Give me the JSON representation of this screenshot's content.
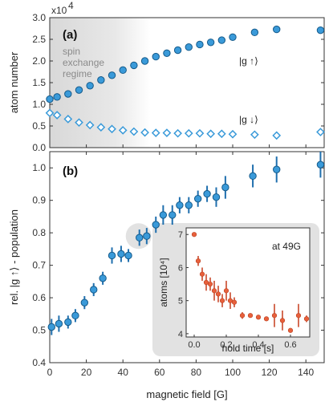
{
  "chart_data": [
    {
      "panel_label": "(a)",
      "type": "scatter",
      "ylabel": "atom number",
      "y_multiplier": "x10^4",
      "xlim": [
        0,
        150
      ],
      "ylim": [
        0,
        3.0
      ],
      "yticks": [
        "0.0",
        "0.5",
        "1.0",
        "1.5",
        "2.0",
        "2.5",
        "3.0"
      ],
      "shaded_region": {
        "label": [
          "spin",
          "exchange",
          "regime"
        ],
        "x": [
          0,
          55
        ]
      },
      "series": [
        {
          "name": "|g ↑⟩",
          "marker": "circle",
          "color": "#3a9ad9",
          "x": [
            0,
            4,
            10,
            16,
            22,
            28,
            34,
            40,
            46,
            52,
            58,
            64,
            70,
            76,
            82,
            88,
            94,
            100,
            112,
            124,
            148
          ],
          "y": [
            1.12,
            1.17,
            1.24,
            1.33,
            1.43,
            1.56,
            1.67,
            1.79,
            1.9,
            2.0,
            2.1,
            2.18,
            2.25,
            2.32,
            2.38,
            2.43,
            2.48,
            2.55,
            2.66,
            2.73,
            2.71
          ]
        },
        {
          "name": "|g ↓⟩",
          "marker": "diamond",
          "color": "#3a9ad9",
          "x": [
            0,
            4,
            10,
            16,
            22,
            28,
            34,
            40,
            46,
            52,
            58,
            64,
            70,
            76,
            82,
            88,
            94,
            100,
            112,
            124,
            148
          ],
          "y": [
            0.8,
            0.75,
            0.66,
            0.58,
            0.52,
            0.47,
            0.43,
            0.4,
            0.37,
            0.35,
            0.34,
            0.34,
            0.33,
            0.33,
            0.33,
            0.32,
            0.32,
            0.31,
            0.3,
            0.28,
            0.36
          ]
        }
      ]
    },
    {
      "panel_label": "(b)",
      "type": "scatter",
      "xlabel": "magnetic field [G]",
      "ylabel": "rel. |g ↑⟩ - population",
      "xlim": [
        0,
        150
      ],
      "ylim": [
        0.4,
        1.05
      ],
      "xticks": [
        "0",
        "20",
        "40",
        "60",
        "80",
        "100",
        "120",
        "140"
      ],
      "yticks": [
        "0.4",
        "0.5",
        "0.6",
        "0.7",
        "0.8",
        "0.9",
        "1.0"
      ],
      "series": [
        {
          "name": "",
          "marker": "circle",
          "color": "#3a9ad9",
          "x": [
            1,
            5,
            10,
            14,
            19,
            24,
            29,
            34,
            39,
            43,
            49,
            53,
            58,
            62,
            67,
            71,
            76,
            81,
            86,
            91,
            96,
            111,
            124,
            148
          ],
          "y": [
            0.51,
            0.52,
            0.525,
            0.545,
            0.585,
            0.625,
            0.66,
            0.73,
            0.735,
            0.73,
            0.785,
            0.79,
            0.825,
            0.855,
            0.855,
            0.885,
            0.885,
            0.905,
            0.92,
            0.91,
            0.94,
            0.975,
            0.995,
            1.01
          ],
          "err": [
            0.025,
            0.025,
            0.02,
            0.02,
            0.02,
            0.02,
            0.02,
            0.025,
            0.025,
            0.02,
            0.025,
            0.025,
            0.025,
            0.03,
            0.03,
            0.025,
            0.025,
            0.025,
            0.025,
            0.03,
            0.035,
            0.035,
            0.04,
            0.04
          ]
        }
      ]
    },
    {
      "panel_label": "inset",
      "type": "scatter",
      "annotation": "at 49G",
      "xlabel": "hold time [s]",
      "ylabel": "atoms [10⁴]",
      "xlim": [
        -0.05,
        0.72
      ],
      "ylim": [
        3.9,
        7.2
      ],
      "xticks": [
        "0.0",
        "0.2",
        "0.4",
        "0.6"
      ],
      "yticks": [
        "4",
        "5",
        "6",
        "7"
      ],
      "series": [
        {
          "name": "",
          "marker": "circle",
          "color": "#e8603c",
          "x": [
            0.0,
            0.025,
            0.05,
            0.075,
            0.1,
            0.125,
            0.15,
            0.175,
            0.2,
            0.225,
            0.25,
            0.3,
            0.35,
            0.4,
            0.45,
            0.5,
            0.55,
            0.6,
            0.65,
            0.7
          ],
          "y": [
            7.0,
            6.2,
            5.8,
            5.55,
            5.5,
            5.3,
            5.2,
            5.0,
            5.3,
            5.0,
            4.95,
            4.55,
            4.55,
            4.5,
            4.45,
            4.55,
            4.4,
            4.1,
            4.55,
            4.45
          ],
          "err": [
            0.0,
            0.15,
            0.2,
            0.25,
            0.2,
            0.3,
            0.25,
            0.2,
            0.3,
            0.25,
            0.15,
            0.1,
            0.05,
            0.05,
            0.05,
            0.35,
            0.3,
            0.05,
            0.35,
            0.1
          ]
        }
      ]
    }
  ]
}
